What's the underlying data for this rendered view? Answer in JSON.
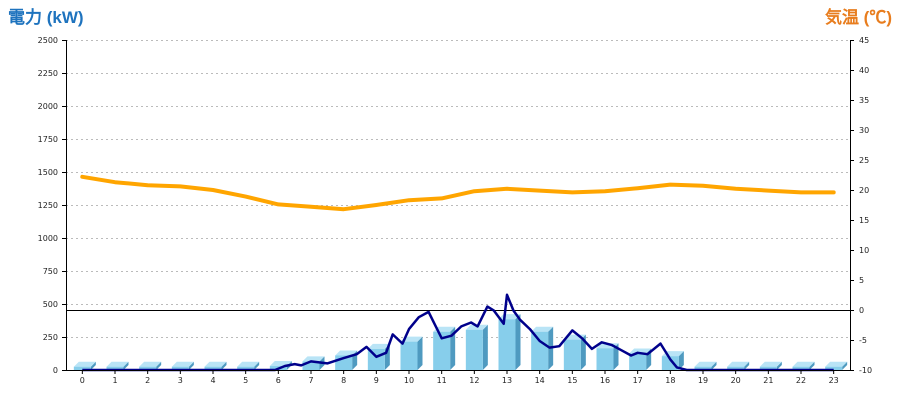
{
  "chart_data": {
    "type": "bar+line",
    "left_axis": {
      "title": "電力 (kW)",
      "title_color": "#1e73be",
      "min": 0,
      "max": 2500,
      "ticks": [
        0,
        250,
        500,
        750,
        1000,
        1250,
        1500,
        1750,
        2000,
        2250,
        2500
      ]
    },
    "right_axis": {
      "title": "気温 (℃)",
      "title_color": "#e87d1e",
      "min": -10,
      "max": 45,
      "ticks": [
        -10,
        -5,
        0,
        5,
        10,
        15,
        20,
        25,
        30,
        35,
        40,
        45
      ]
    },
    "categories": [
      "0",
      "1",
      "2",
      "3",
      "4",
      "5",
      "6",
      "7",
      "8",
      "9",
      "10",
      "11",
      "12",
      "13",
      "14",
      "15",
      "16",
      "17",
      "18",
      "19",
      "20",
      "21",
      "22",
      "23"
    ],
    "grid": true,
    "series": [
      {
        "kind": "bar",
        "axis": "left",
        "color": "#87ceeb",
        "values": [
          25,
          25,
          25,
          25,
          25,
          25,
          30,
          65,
          110,
          160,
          215,
          290,
          305,
          385,
          290,
          230,
          165,
          125,
          105,
          25,
          25,
          25,
          25,
          25
        ]
      },
      {
        "kind": "line",
        "axis": "left",
        "color": "#00008b",
        "x": [
          0,
          5.9,
          6.2,
          6.5,
          6.7,
          7.0,
          7.5,
          8.0,
          8.4,
          8.7,
          9.0,
          9.3,
          9.5,
          9.8,
          10.0,
          10.3,
          10.6,
          10.8,
          11.0,
          11.3,
          11.6,
          11.9,
          12.1,
          12.4,
          12.6,
          12.9,
          13.0,
          13.2,
          13.4,
          13.7,
          14.0,
          14.3,
          14.6,
          15.0,
          15.3,
          15.6,
          15.9,
          16.2,
          16.5,
          16.8,
          17.0,
          17.3,
          17.7,
          18.0,
          18.2,
          18.5,
          19,
          23
        ],
        "y": [
          0,
          0,
          30,
          45,
          35,
          65,
          50,
          90,
          120,
          175,
          100,
          130,
          270,
          200,
          310,
          400,
          440,
          340,
          240,
          260,
          330,
          360,
          330,
          480,
          450,
          350,
          570,
          450,
          380,
          310,
          220,
          170,
          180,
          300,
          240,
          160,
          210,
          190,
          150,
          110,
          130,
          120,
          200,
          80,
          20,
          0,
          0,
          0
        ]
      },
      {
        "kind": "line",
        "axis": "right",
        "color": "#ffa500",
        "values": [
          22.2,
          21.3,
          20.8,
          20.6,
          20.0,
          18.9,
          17.6,
          17.2,
          16.8,
          17.5,
          18.3,
          18.6,
          19.8,
          20.2,
          19.9,
          19.6,
          19.8,
          20.3,
          20.9,
          20.7,
          20.2,
          19.9,
          19.6,
          19.6
        ]
      }
    ]
  }
}
